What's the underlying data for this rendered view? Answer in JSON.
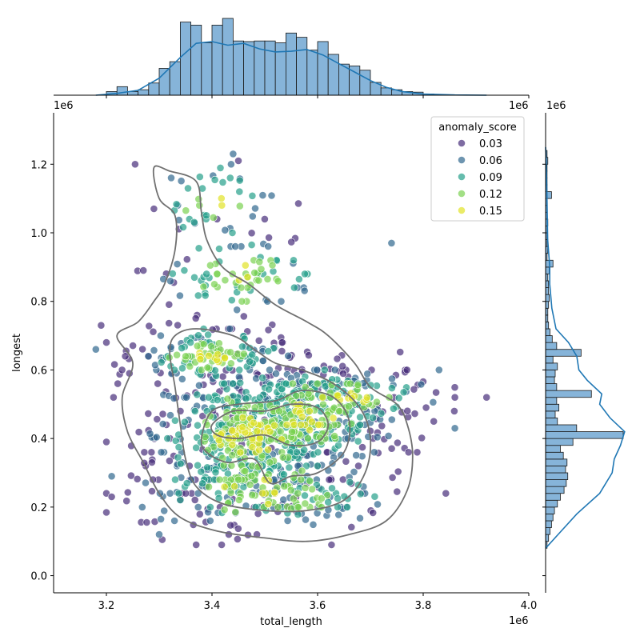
{
  "chart_data": {
    "type": "scatter",
    "subtype": "joint-plot",
    "xlabel": "total_length",
    "ylabel": "longest",
    "x_offset_label": "1e6",
    "y_offset_label": "1e6",
    "marginal_x_offset_label": "1e6",
    "marginal_y_offset_label": "1e6",
    "xlim": [
      3.1,
      4.0
    ],
    "ylim": [
      -0.05,
      1.35
    ],
    "x_ticks": [
      3.2,
      3.4,
      3.6,
      3.8,
      4.0
    ],
    "x_tick_labels": [
      "3.2",
      "3.4",
      "3.6",
      "3.8",
      "4.0"
    ],
    "y_ticks": [
      0.0,
      0.2,
      0.4,
      0.6,
      0.8,
      1.0,
      1.2
    ],
    "y_tick_labels": [
      "0.0",
      "0.2",
      "0.4",
      "0.6",
      "0.8",
      "1.0",
      "1.2"
    ],
    "grid": false,
    "colormap": "viridis",
    "point_alpha": 0.7,
    "legend": {
      "title": "anomaly_score",
      "position": "top-right",
      "entries": [
        {
          "label": "0.03",
          "color": "#472d7b"
        },
        {
          "label": "0.06",
          "color": "#31688e"
        },
        {
          "label": "0.09",
          "color": "#25a08a"
        },
        {
          "label": "0.12",
          "color": "#7ad151"
        },
        {
          "label": "0.15",
          "color": "#e1e326"
        }
      ]
    },
    "colors": {
      "hist_fill": "#86b4d9",
      "hist_edge": "#1a1a1a",
      "kde_line": "#1f77b4",
      "contour": "#707070"
    },
    "x_hist": {
      "bin_width": 0.02,
      "bin_starts": [
        3.2,
        3.22,
        3.24,
        3.26,
        3.28,
        3.3,
        3.32,
        3.34,
        3.36,
        3.38,
        3.4,
        3.42,
        3.44,
        3.46,
        3.48,
        3.5,
        3.52,
        3.54,
        3.56,
        3.58,
        3.6,
        3.62,
        3.64,
        3.66,
        3.68,
        3.7,
        3.72,
        3.74,
        3.76,
        3.78,
        3.8
      ],
      "counts": [
        6,
        14,
        6,
        9,
        20,
        44,
        55,
        120,
        115,
        86,
        115,
        126,
        89,
        88,
        89,
        89,
        86,
        102,
        95,
        74,
        88,
        67,
        51,
        48,
        41,
        21,
        12,
        9,
        6,
        5,
        2
      ],
      "kde": [
        [
          3.18,
          0
        ],
        [
          3.22,
          3
        ],
        [
          3.26,
          8
        ],
        [
          3.3,
          28
        ],
        [
          3.34,
          62
        ],
        [
          3.37,
          85
        ],
        [
          3.4,
          88
        ],
        [
          3.43,
          82
        ],
        [
          3.46,
          85
        ],
        [
          3.49,
          76
        ],
        [
          3.52,
          71
        ],
        [
          3.55,
          72
        ],
        [
          3.58,
          75
        ],
        [
          3.61,
          66
        ],
        [
          3.64,
          52
        ],
        [
          3.67,
          38
        ],
        [
          3.7,
          24
        ],
        [
          3.73,
          13
        ],
        [
          3.76,
          6
        ],
        [
          3.8,
          2
        ],
        [
          3.86,
          0.4
        ],
        [
          3.92,
          0
        ]
      ]
    },
    "y_hist": {
      "bin_width": 0.02,
      "bin_starts": [
        0.08,
        0.1,
        0.12,
        0.14,
        0.16,
        0.18,
        0.2,
        0.22,
        0.24,
        0.26,
        0.28,
        0.3,
        0.32,
        0.34,
        0.36,
        0.38,
        0.4,
        0.42,
        0.44,
        0.46,
        0.48,
        0.5,
        0.52,
        0.54,
        0.56,
        0.58,
        0.6,
        0.62,
        0.64,
        0.66,
        0.68,
        0.7,
        0.72,
        0.74,
        0.76,
        0.78,
        0.8,
        0.82,
        0.84,
        0.86,
        0.88,
        0.9,
        0.92,
        0.94,
        0.96,
        0.98,
        1.0,
        1.02,
        1.04,
        1.06,
        1.08,
        1.1,
        1.12,
        1.14,
        1.16,
        1.18,
        1.2,
        1.22
      ],
      "counts": [
        2,
        4,
        6,
        8,
        10,
        12,
        16,
        20,
        25,
        28,
        30,
        27,
        29,
        24,
        20,
        37,
        105,
        42,
        16,
        13,
        18,
        15,
        62,
        15,
        12,
        13,
        16,
        10,
        48,
        15,
        9,
        6,
        4,
        3,
        3,
        4,
        5,
        4,
        4,
        3,
        5,
        10,
        2,
        3,
        2,
        2,
        2,
        3,
        2,
        2,
        2,
        8,
        2,
        2,
        2,
        2,
        3,
        2
      ],
      "kde": [
        [
          0.08,
          0
        ],
        [
          0.12,
          6
        ],
        [
          0.18,
          15
        ],
        [
          0.24,
          26
        ],
        [
          0.3,
          32
        ],
        [
          0.34,
          33
        ],
        [
          0.38,
          36
        ],
        [
          0.42,
          38
        ],
        [
          0.46,
          31
        ],
        [
          0.5,
          26
        ],
        [
          0.53,
          27
        ],
        [
          0.57,
          20
        ],
        [
          0.6,
          16
        ],
        [
          0.64,
          15
        ],
        [
          0.68,
          11
        ],
        [
          0.72,
          5
        ],
        [
          0.78,
          3
        ],
        [
          0.85,
          2
        ],
        [
          0.9,
          2
        ],
        [
          0.98,
          1
        ],
        [
          1.05,
          0.8
        ],
        [
          1.12,
          0.6
        ],
        [
          1.2,
          0.3
        ],
        [
          1.25,
          0
        ]
      ]
    },
    "contours": [
      [
        [
          3.22,
          0.7
        ],
        [
          3.25,
          0.62
        ],
        [
          3.23,
          0.52
        ],
        [
          3.24,
          0.42
        ],
        [
          3.27,
          0.33
        ],
        [
          3.3,
          0.24
        ],
        [
          3.34,
          0.17
        ],
        [
          3.41,
          0.13
        ],
        [
          3.5,
          0.11
        ],
        [
          3.58,
          0.1
        ],
        [
          3.66,
          0.12
        ],
        [
          3.73,
          0.16
        ],
        [
          3.77,
          0.25
        ],
        [
          3.78,
          0.35
        ],
        [
          3.77,
          0.44
        ],
        [
          3.75,
          0.5
        ],
        [
          3.7,
          0.55
        ],
        [
          3.67,
          0.62
        ],
        [
          3.62,
          0.7
        ],
        [
          3.58,
          0.74
        ],
        [
          3.52,
          0.79
        ],
        [
          3.47,
          0.85
        ],
        [
          3.42,
          0.9
        ],
        [
          3.39,
          0.98
        ],
        [
          3.38,
          1.06
        ],
        [
          3.37,
          1.15
        ],
        [
          3.32,
          1.18
        ],
        [
          3.29,
          1.19
        ],
        [
          3.3,
          1.1
        ],
        [
          3.33,
          1.05
        ],
        [
          3.33,
          0.95
        ],
        [
          3.31,
          0.85
        ],
        [
          3.29,
          0.8
        ],
        [
          3.26,
          0.74
        ],
        [
          3.22,
          0.7
        ]
      ],
      [
        [
          3.32,
          0.65
        ],
        [
          3.33,
          0.55
        ],
        [
          3.34,
          0.44
        ],
        [
          3.35,
          0.34
        ],
        [
          3.37,
          0.26
        ],
        [
          3.42,
          0.21
        ],
        [
          3.5,
          0.19
        ],
        [
          3.58,
          0.19
        ],
        [
          3.65,
          0.22
        ],
        [
          3.69,
          0.3
        ],
        [
          3.7,
          0.4
        ],
        [
          3.68,
          0.49
        ],
        [
          3.63,
          0.56
        ],
        [
          3.57,
          0.6
        ],
        [
          3.52,
          0.62
        ],
        [
          3.48,
          0.66
        ],
        [
          3.44,
          0.7
        ],
        [
          3.37,
          0.72
        ],
        [
          3.33,
          0.7
        ],
        [
          3.32,
          0.65
        ]
      ],
      [
        [
          3.38,
          0.4
        ],
        [
          3.4,
          0.48
        ],
        [
          3.45,
          0.5
        ],
        [
          3.52,
          0.51
        ],
        [
          3.57,
          0.54
        ],
        [
          3.63,
          0.52
        ],
        [
          3.66,
          0.45
        ],
        [
          3.65,
          0.36
        ],
        [
          3.6,
          0.3
        ],
        [
          3.55,
          0.29
        ],
        [
          3.51,
          0.27
        ],
        [
          3.48,
          0.34
        ],
        [
          3.43,
          0.33
        ],
        [
          3.39,
          0.36
        ],
        [
          3.38,
          0.4
        ]
      ],
      [
        [
          3.4,
          0.44
        ],
        [
          3.44,
          0.48
        ],
        [
          3.5,
          0.48
        ],
        [
          3.55,
          0.5
        ],
        [
          3.6,
          0.49
        ],
        [
          3.62,
          0.44
        ],
        [
          3.6,
          0.39
        ],
        [
          3.55,
          0.38
        ],
        [
          3.5,
          0.41
        ],
        [
          3.45,
          0.4
        ],
        [
          3.41,
          0.41
        ],
        [
          3.4,
          0.44
        ]
      ]
    ],
    "clusters": [
      {
        "cx": 3.47,
        "cy": 0.41,
        "sx": 0.09,
        "sy": 0.1,
        "n": 540
      },
      {
        "cx": 3.58,
        "cy": 0.46,
        "sx": 0.08,
        "sy": 0.08,
        "n": 300
      },
      {
        "cx": 3.4,
        "cy": 0.64,
        "sx": 0.07,
        "sy": 0.04,
        "n": 160
      },
      {
        "cx": 3.5,
        "cy": 0.25,
        "sx": 0.12,
        "sy": 0.06,
        "n": 220
      },
      {
        "cx": 3.45,
        "cy": 0.88,
        "sx": 0.08,
        "sy": 0.06,
        "n": 90
      },
      {
        "cx": 3.4,
        "cy": 1.09,
        "sx": 0.06,
        "sy": 0.06,
        "n": 45
      },
      {
        "cx": 3.66,
        "cy": 0.52,
        "sx": 0.08,
        "sy": 0.04,
        "n": 120
      }
    ],
    "outliers": [
      [
        3.18,
        0.66
      ],
      [
        3.19,
        0.73
      ],
      [
        3.2,
        0.39
      ],
      [
        3.21,
        0.29
      ],
      [
        3.21,
        0.23
      ],
      [
        3.27,
        0.89
      ],
      [
        3.3,
        0.12
      ],
      [
        3.37,
        0.09
      ],
      [
        3.44,
        1.23
      ],
      [
        3.45,
        1.21
      ],
      [
        3.74,
        0.97
      ],
      [
        3.83,
        0.6
      ],
      [
        3.86,
        0.52
      ],
      [
        3.92,
        0.52
      ],
      [
        3.82,
        0.45
      ],
      [
        3.86,
        0.43
      ],
      [
        3.29,
        1.07
      ]
    ]
  }
}
